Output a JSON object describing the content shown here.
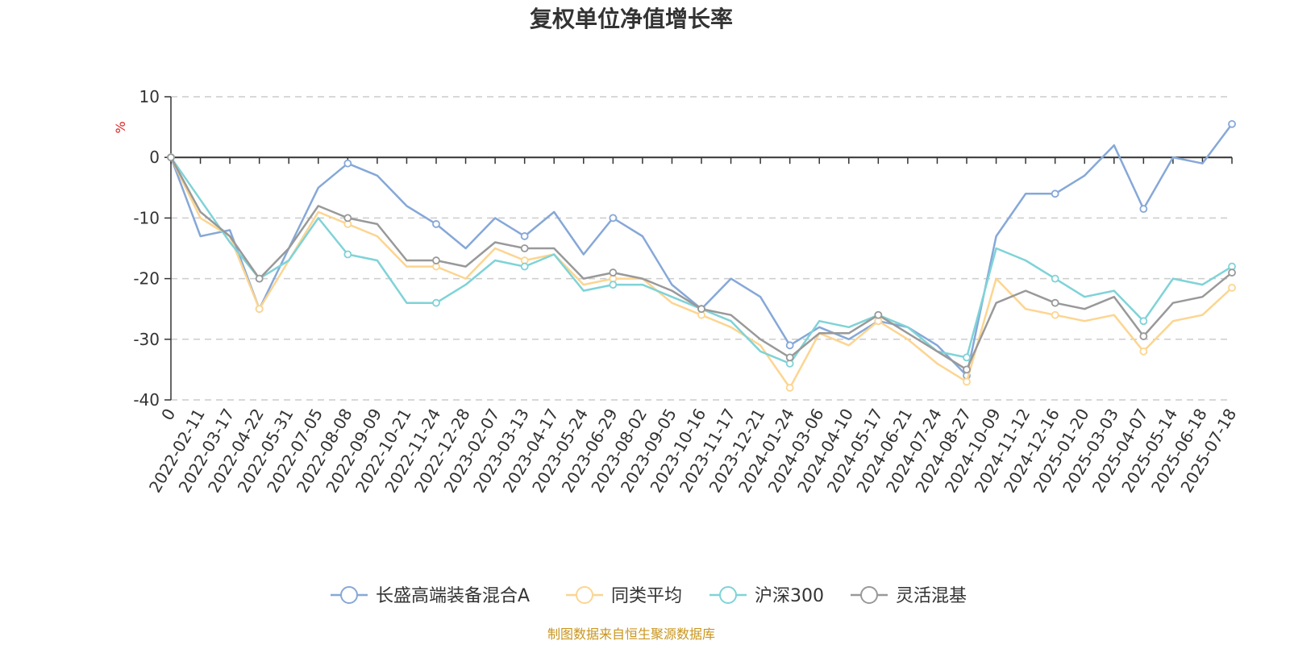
{
  "chart_data": {
    "type": "line",
    "title": "复权单位净值增长率",
    "ylabel": "%",
    "ylim": [
      -40,
      10
    ],
    "y_ticks": [
      10,
      0,
      -10,
      -20,
      -30,
      -40
    ],
    "x_ticks": [
      "0",
      "2022-02-11",
      "2022-03-17",
      "2022-04-22",
      "2022-05-31",
      "2022-07-05",
      "2022-08-08",
      "2022-09-09",
      "2022-10-21",
      "2022-11-24",
      "2022-12-28",
      "2023-02-07",
      "2023-03-13",
      "2023-04-17",
      "2023-05-24",
      "2023-06-29",
      "2023-08-02",
      "2023-09-05",
      "2023-10-16",
      "2023-11-17",
      "2023-12-21",
      "2024-01-24",
      "2024-03-06",
      "2024-04-10",
      "2024-05-17",
      "2024-06-21",
      "2024-07-24",
      "2024-08-27",
      "2024-10-09",
      "2024-11-12",
      "2024-12-16",
      "2025-01-20",
      "2025-03-03",
      "2025-04-07",
      "2025-05-14",
      "2025-06-18",
      "2025-07-18"
    ],
    "grid": true,
    "legend_position": "bottom",
    "source_note": "制图数据来自恒生聚源数据库",
    "series": [
      {
        "name": "长盛高端装备混合A",
        "color": "#86a8d8",
        "values": [
          0,
          -13,
          -12,
          -25,
          -15,
          -5,
          -1,
          -3,
          -8,
          -11,
          -15,
          -10,
          -13,
          -9,
          -16,
          -10,
          -13,
          -21,
          -25,
          -20,
          -23,
          -31,
          -28,
          -30,
          -27,
          -28,
          -31,
          -36,
          -13,
          -6,
          -6,
          -3,
          2,
          -8.5,
          0,
          -1,
          5.5
        ]
      },
      {
        "name": "同类平均",
        "color": "#fcd591",
        "values": [
          0,
          -10,
          -13,
          -25,
          -17,
          -9,
          -11,
          -13,
          -18,
          -18,
          -20,
          -15,
          -17,
          -16,
          -21,
          -20,
          -20,
          -24,
          -26,
          -28,
          -31,
          -38,
          -29,
          -31,
          -27,
          -30,
          -34,
          -37,
          -20,
          -25,
          -26,
          -27,
          -26,
          -32,
          -27,
          -26,
          -21.5
        ]
      },
      {
        "name": "沪深300",
        "color": "#7fd3d7",
        "values": [
          0,
          -7,
          -14,
          -20,
          -17,
          -10,
          -16,
          -17,
          -24,
          -24,
          -21,
          -17,
          -18,
          -16,
          -22,
          -21,
          -21,
          -23,
          -25,
          -27,
          -32,
          -34,
          -27,
          -28,
          -26,
          -28,
          -32,
          -33,
          -15,
          -17,
          -20,
          -23,
          -22,
          -27,
          -20,
          -21,
          -18
        ]
      },
      {
        "name": "灵活混基",
        "color": "#999999",
        "values": [
          0,
          -9,
          -13,
          -20,
          -15,
          -8,
          -10,
          -11,
          -17,
          -17,
          -18,
          -14,
          -15,
          -15,
          -20,
          -19,
          -20,
          -22,
          -25,
          -26,
          -30,
          -33,
          -29,
          -29,
          -26,
          -29,
          -32,
          -35,
          -24,
          -22,
          -24,
          -25,
          -23,
          -29.5,
          -24,
          -23,
          -19
        ]
      }
    ]
  }
}
